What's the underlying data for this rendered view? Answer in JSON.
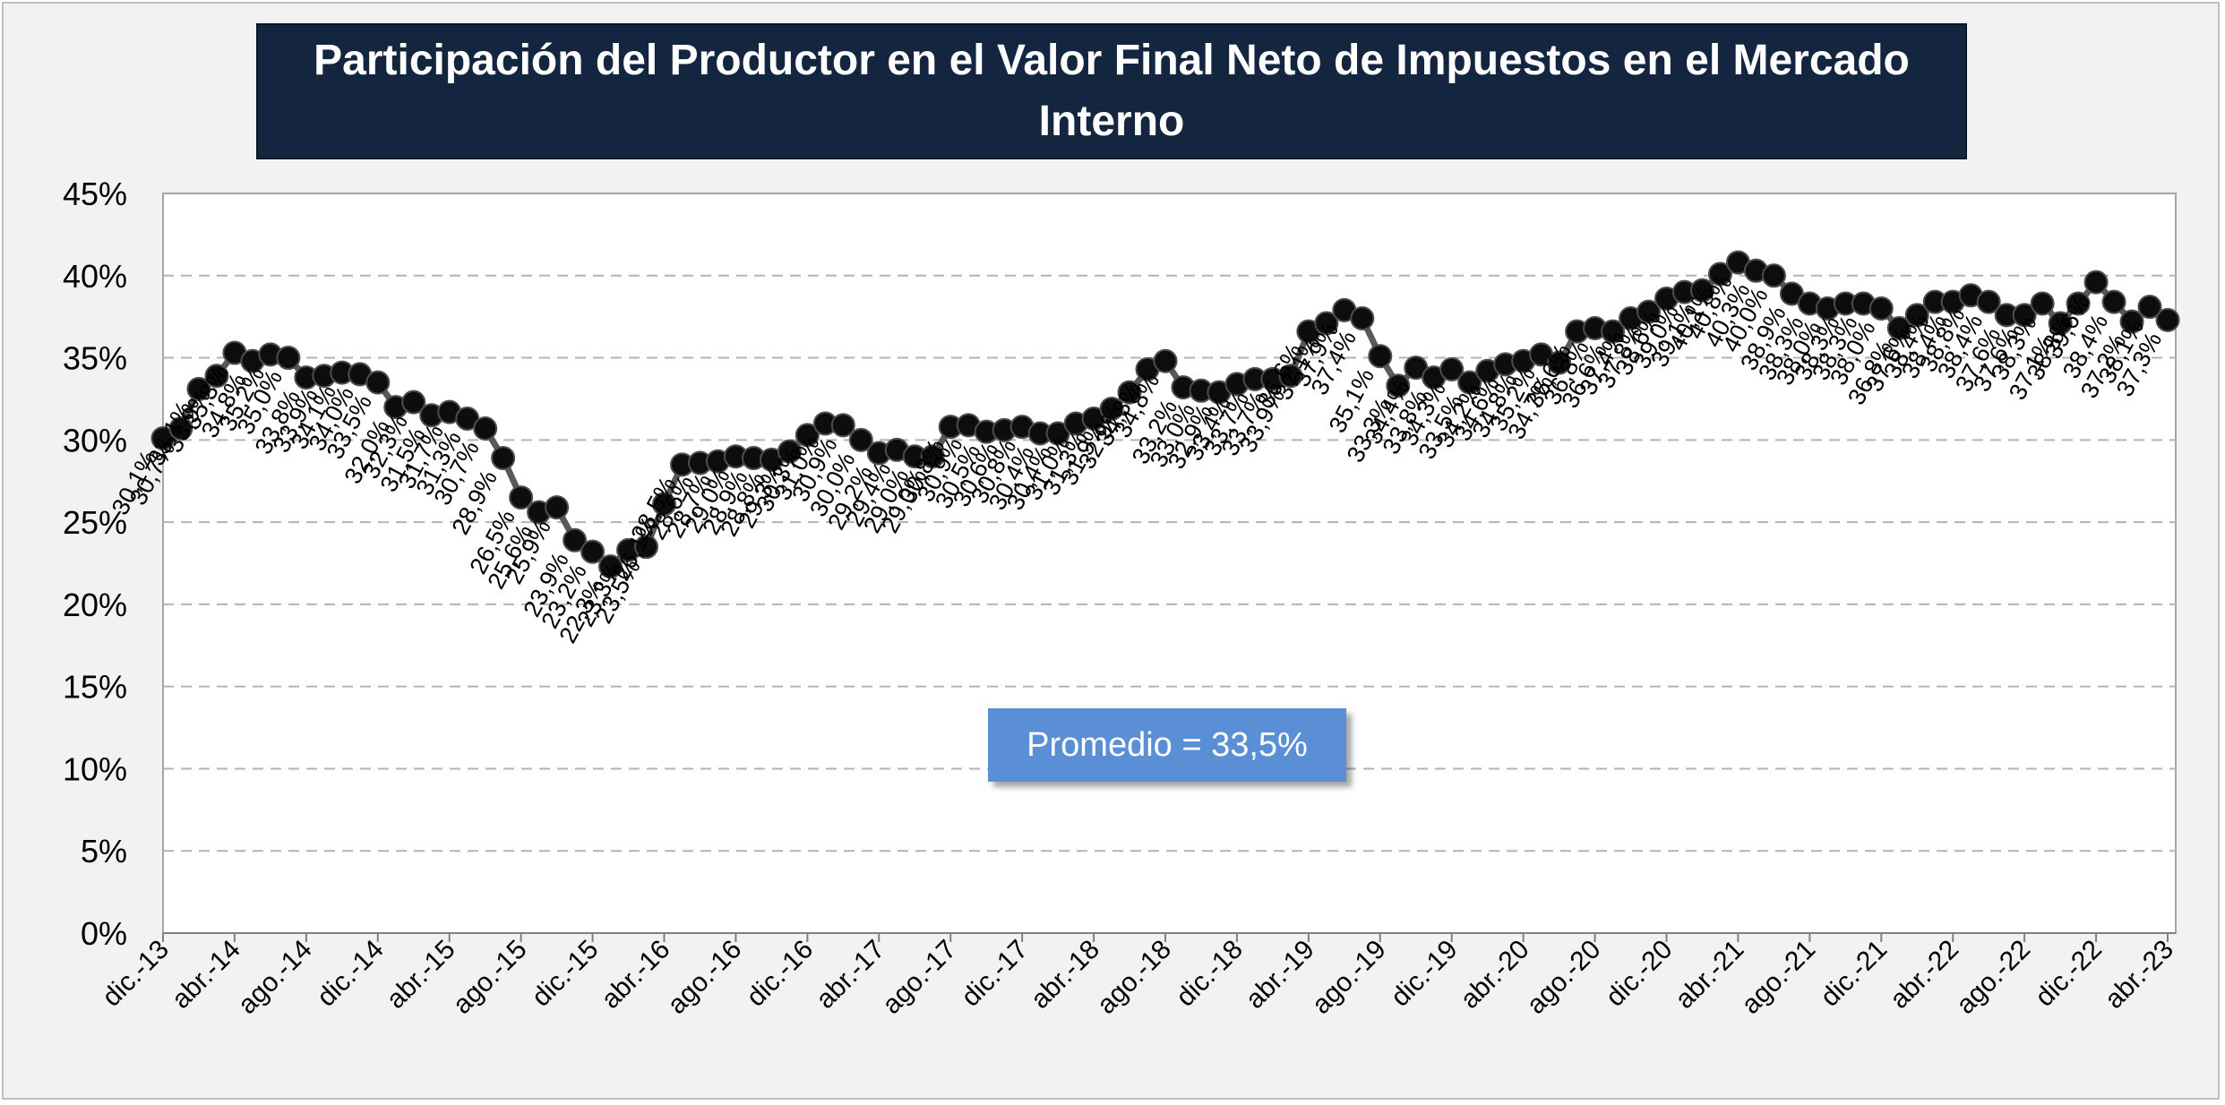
{
  "chart_data": {
    "type": "line",
    "title": "Participación del Productor en el Valor Final Neto de Impuestos en el Mercado Interno",
    "annotation": "Promedio = 33,5%",
    "y_ticks": [
      "0%",
      "5%",
      "10%",
      "15%",
      "20%",
      "25%",
      "30%",
      "35%",
      "40%",
      "45%"
    ],
    "ylim": [
      0,
      45
    ],
    "x_ticks": [
      "dic.-13",
      "abr.-14",
      "ago.-14",
      "dic.-14",
      "abr.-15",
      "ago.-15",
      "dic.-15",
      "abr.-16",
      "ago.-16",
      "dic.-16",
      "abr.-17",
      "ago.-17",
      "dic.-17",
      "abr.-18",
      "ago.-18",
      "dic.-18",
      "abr.-19",
      "ago.-19",
      "dic.-19",
      "abr.-20",
      "ago.-20",
      "dic.-20",
      "abr.-21",
      "ago.-21",
      "dic.-21",
      "abr.-22",
      "ago.-22",
      "dic.-22",
      "abr.-23"
    ],
    "grid": "horizontal-dashed",
    "line_color": "#595959",
    "marker_color": "#0d0d0d",
    "series": [
      {
        "x": [
          "dic.-13",
          "ene.-14",
          "feb.-14",
          "mar.-14",
          "abr.-14",
          "may.-14",
          "jun.-14",
          "jul.-14",
          "ago.-14",
          "sep.-14",
          "oct.-14",
          "nov.-14",
          "dic.-14",
          "ene.-15",
          "feb.-15",
          "mar.-15",
          "abr.-15",
          "may.-15",
          "jun.-15",
          "jul.-15",
          "ago.-15",
          "sep.-15",
          "oct.-15",
          "nov.-15",
          "dic.-15",
          "ene.-16",
          "feb.-16",
          "mar.-16",
          "abr.-16",
          "may.-16",
          "jun.-16",
          "jul.-16",
          "ago.-16",
          "sep.-16",
          "oct.-16",
          "nov.-16",
          "dic.-16",
          "ene.-17",
          "feb.-17",
          "mar.-17",
          "abr.-17",
          "may.-17",
          "jun.-17",
          "jul.-17",
          "ago.-17",
          "sep.-17",
          "oct.-17",
          "nov.-17",
          "dic.-17",
          "ene.-18",
          "feb.-18",
          "mar.-18",
          "abr.-18",
          "may.-18",
          "jun.-18",
          "jul.-18",
          "ago.-18",
          "sep.-18",
          "oct.-18",
          "nov.-18",
          "dic.-18",
          "ene.-19",
          "feb.-19",
          "mar.-19",
          "abr.-19",
          "may.-19",
          "jun.-19",
          "jul.-19",
          "ago.-19",
          "sep.-19",
          "oct.-19",
          "nov.-19",
          "dic.-19",
          "ene.-20",
          "feb.-20",
          "mar.-20",
          "abr.-20",
          "may.-20",
          "jun.-20",
          "jul.-20",
          "ago.-20",
          "sep.-20",
          "oct.-20",
          "nov.-20",
          "dic.-20",
          "ene.-21",
          "feb.-21",
          "mar.-21",
          "abr.-21",
          "may.-21",
          "jun.-21",
          "jul.-21",
          "ago.-21",
          "sep.-21",
          "oct.-21",
          "nov.-21",
          "dic.-21",
          "ene.-22",
          "feb.-22",
          "mar.-22",
          "abr.-22",
          "may.-22",
          "jun.-22",
          "jul.-22",
          "ago.-22",
          "sep.-22",
          "oct.-22",
          "nov.-22",
          "dic.-22",
          "ene.-23",
          "feb.-23",
          "mar.-23",
          "abr.-23"
        ],
        "values": [
          30.1,
          30.7,
          33.1,
          33.9,
          35.3,
          34.8,
          35.2,
          35.0,
          33.8,
          33.9,
          34.1,
          34.0,
          33.5,
          32.0,
          32.3,
          31.5,
          31.7,
          31.3,
          30.7,
          28.9,
          26.5,
          25.6,
          25.9,
          23.9,
          23.2,
          22.3,
          23.3,
          23.5,
          26.1,
          28.5,
          28.6,
          28.7,
          29.0,
          28.9,
          28.8,
          29.3,
          30.3,
          31.0,
          30.9,
          30.0,
          29.2,
          29.4,
          29.0,
          29.0,
          30.8,
          30.9,
          30.5,
          30.6,
          30.8,
          30.4,
          30.4,
          31.0,
          31.3,
          31.9,
          32.9,
          34.3,
          34.8,
          33.2,
          33.0,
          32.9,
          33.4,
          33.7,
          33.7,
          33.9,
          36.6,
          37.1,
          37.9,
          37.4,
          35.1,
          33.3,
          34.4,
          33.8,
          34.3,
          33.5,
          34.2,
          34.6,
          34.8,
          35.2,
          34.7,
          36.6,
          36.8,
          36.6,
          37.4,
          37.8,
          38.6,
          39.0,
          39.1,
          40.1,
          40.8,
          40.3,
          40.0,
          38.9,
          38.3,
          38.0,
          38.3,
          38.3,
          38.0,
          36.8,
          37.6,
          38.4,
          38.4,
          38.8,
          38.4,
          37.6,
          37.6,
          38.3,
          37.1,
          38.3,
          39.6,
          38.4,
          37.2,
          38.1,
          37.3
        ],
        "labels": [
          "30,1%",
          "30,7%",
          "33,1%",
          "33,9%",
          "35,3%",
          "34,8%",
          "35,2%",
          "35,0%",
          "33,8%",
          "33,9%",
          "34,1%",
          "34,0%",
          "33,5%",
          "32,0%",
          "32,3%",
          "31,5%",
          "31,7%",
          "31,3%",
          "30,7%",
          "28,9%",
          "26,5%",
          "25,6%",
          "25,9%",
          "23,9%",
          "23,2%",
          "22,3%",
          "23,3%",
          "23,5%",
          "26,1%",
          "28,5%",
          "28,6%",
          "28,7%",
          "29,0%",
          "28,9%",
          "28,8%",
          "29,3%",
          "30,3%",
          "31,0%",
          "30,9%",
          "30,0%",
          "29,2%",
          "29,4%",
          "29,0%",
          "29,0%",
          "30,8%",
          "30,9%",
          "30,5%",
          "30,6%",
          "30,8%",
          "30,4%",
          "30,4%",
          "31,0%",
          "31,3%",
          "31,9%",
          "32,9%",
          "34,3%",
          "34,8%",
          "33,2%",
          "33,0%",
          "32,9%",
          "33,4%",
          "33,7%",
          "33,7%",
          "33,9%",
          "36,6%",
          "37,1%",
          "37,9%",
          "37,4%",
          "35,1%",
          "33,3%",
          "34,4%",
          "33,8%",
          "34,3%",
          "33,5%",
          "34,2%",
          "34,6%",
          "34,8%",
          "35,2%",
          "34,7%",
          "36,6%",
          "36,8%",
          "36,6%",
          "37,4%",
          "37,8%",
          "38,6%",
          "39,0%",
          "39,1%",
          "40,1%",
          "40,8%",
          "40,3%",
          "40,0%",
          "38,9%",
          "38,3%",
          "38,0%",
          "38,3%",
          "38,3%",
          "38,0%",
          "36,8%",
          "37,6%",
          "38,4%",
          "38,4%",
          "38,8%",
          "38,4%",
          "37,6%",
          "37,6%",
          "38,3%",
          "37,1%",
          "38,3%",
          "39,6%",
          "38,4%",
          "37,2%",
          "38,1%",
          "37,3%"
        ]
      }
    ]
  }
}
